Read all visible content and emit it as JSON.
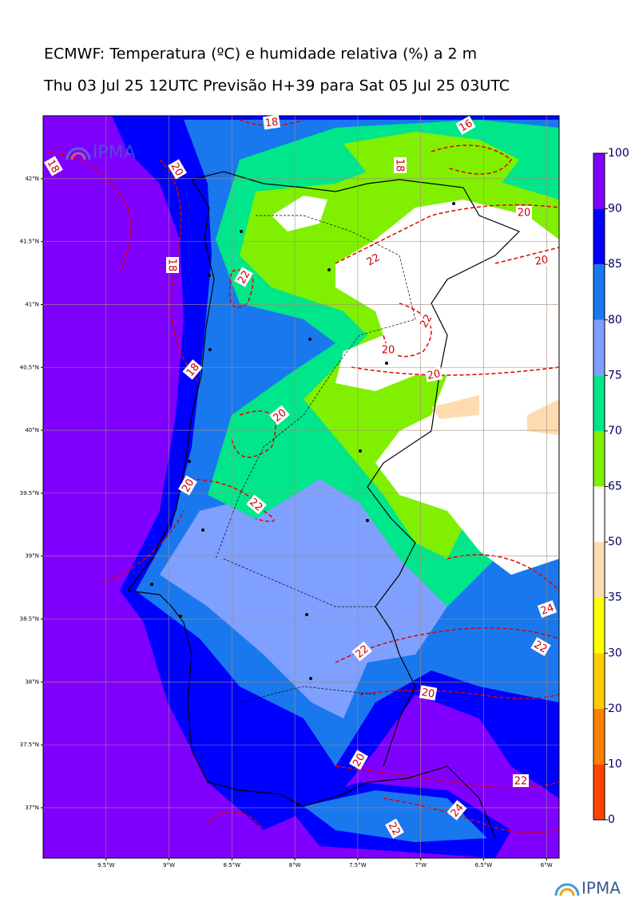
{
  "title": "ECMWF: Temperatura (ºC) e humidade relativa (%) a 2 m",
  "subtitle": "Thu 03 Jul 25 12UTC Previsão H+39 para Sat 05 Jul 25 03UTC",
  "logo_text": "IPMA",
  "map": {
    "xlim": [
      -10,
      -5.9
    ],
    "ylim": [
      36.6,
      42.5
    ],
    "xticks": [
      {
        "value": -9.5,
        "label": "9.5°W"
      },
      {
        "value": -9,
        "label": "9°W"
      },
      {
        "value": -8.5,
        "label": "8.5°W"
      },
      {
        "value": -8,
        "label": "8°W"
      },
      {
        "value": -7.5,
        "label": "7.5°W"
      },
      {
        "value": -7,
        "label": "7°W"
      },
      {
        "value": -6.5,
        "label": "6.5°W"
      },
      {
        "value": -6,
        "label": "6°W"
      }
    ],
    "yticks": [
      {
        "value": 37,
        "label": "37°N"
      },
      {
        "value": 37.5,
        "label": "37.5°N"
      },
      {
        "value": 38,
        "label": "38°N"
      },
      {
        "value": 38.5,
        "label": "38.5°N"
      },
      {
        "value": 39,
        "label": "39°N"
      },
      {
        "value": 39.5,
        "label": "39.5°N"
      },
      {
        "value": 40,
        "label": "40°N"
      },
      {
        "value": 40.5,
        "label": "40.5°N"
      },
      {
        "value": 41,
        "label": "41°N"
      },
      {
        "value": 41.5,
        "label": "41.5°N"
      },
      {
        "value": 42,
        "label": "42°N"
      }
    ],
    "grid": true,
    "contour_labels": [
      18,
      16,
      18,
      20,
      18,
      20,
      20,
      18,
      22,
      22,
      22,
      20,
      18,
      20,
      20,
      20,
      22,
      24,
      22,
      22,
      20,
      20,
      22,
      24,
      22
    ]
  },
  "colorbar": {
    "levels": [
      0,
      10,
      20,
      30,
      35,
      50,
      65,
      70,
      75,
      80,
      85,
      90,
      100
    ],
    "colors": [
      "#ff4500",
      "#ff8000",
      "#ffcc00",
      "#ffff00",
      "#ffdcb0",
      "#ffffff",
      "#80f000",
      "#00e68a",
      "#7fa0ff",
      "#1a78ee",
      "#0000ff",
      "#8000ff"
    ]
  }
}
